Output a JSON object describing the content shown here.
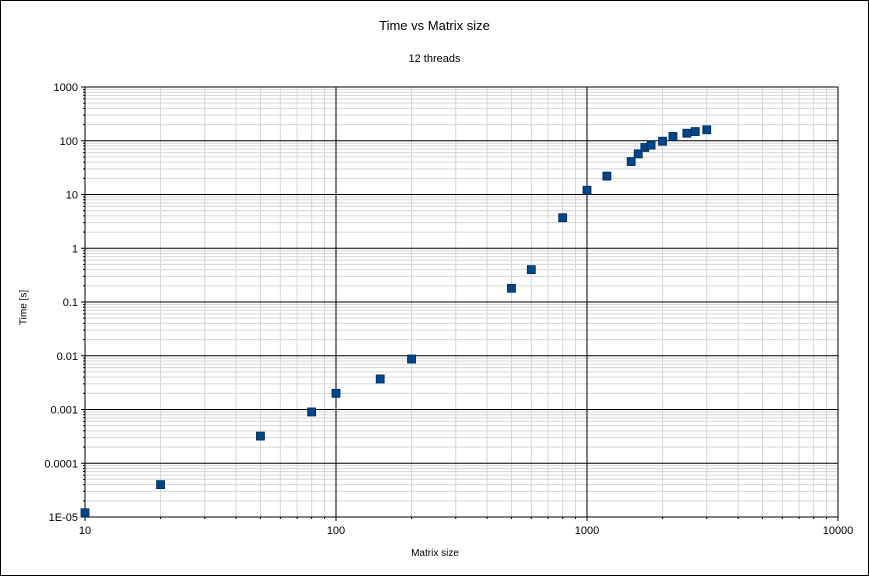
{
  "chart_data": {
    "type": "scatter",
    "title": "Time vs Matrix size",
    "subtitle": "12 threads",
    "xlabel": "Matrix size",
    "ylabel": "Time [s]",
    "x_scale": "log",
    "y_scale": "log",
    "xlim": [
      10,
      10000
    ],
    "ylim": [
      1e-05,
      1000
    ],
    "x_ticks": [
      "10",
      "100",
      "1000",
      "10000"
    ],
    "y_ticks": [
      "1E-05",
      "0.0001",
      "0.001",
      "0.01",
      "0.1",
      "1",
      "10",
      "100",
      "1000"
    ],
    "grid": true,
    "legend": "none",
    "marker_color": "#004586",
    "points": [
      {
        "x": 10,
        "y": 1.2e-05
      },
      {
        "x": 20,
        "y": 4e-05
      },
      {
        "x": 50,
        "y": 0.00032
      },
      {
        "x": 80,
        "y": 0.0009
      },
      {
        "x": 100,
        "y": 0.002
      },
      {
        "x": 150,
        "y": 0.0037
      },
      {
        "x": 200,
        "y": 0.0087
      },
      {
        "x": 500,
        "y": 0.18
      },
      {
        "x": 600,
        "y": 0.4
      },
      {
        "x": 800,
        "y": 3.7
      },
      {
        "x": 1000,
        "y": 12
      },
      {
        "x": 1200,
        "y": 22
      },
      {
        "x": 1500,
        "y": 41
      },
      {
        "x": 1600,
        "y": 57
      },
      {
        "x": 1700,
        "y": 75
      },
      {
        "x": 1800,
        "y": 83
      },
      {
        "x": 2000,
        "y": 98
      },
      {
        "x": 2200,
        "y": 120
      },
      {
        "x": 2500,
        "y": 138
      },
      {
        "x": 2700,
        "y": 148
      },
      {
        "x": 3000,
        "y": 160
      }
    ]
  }
}
